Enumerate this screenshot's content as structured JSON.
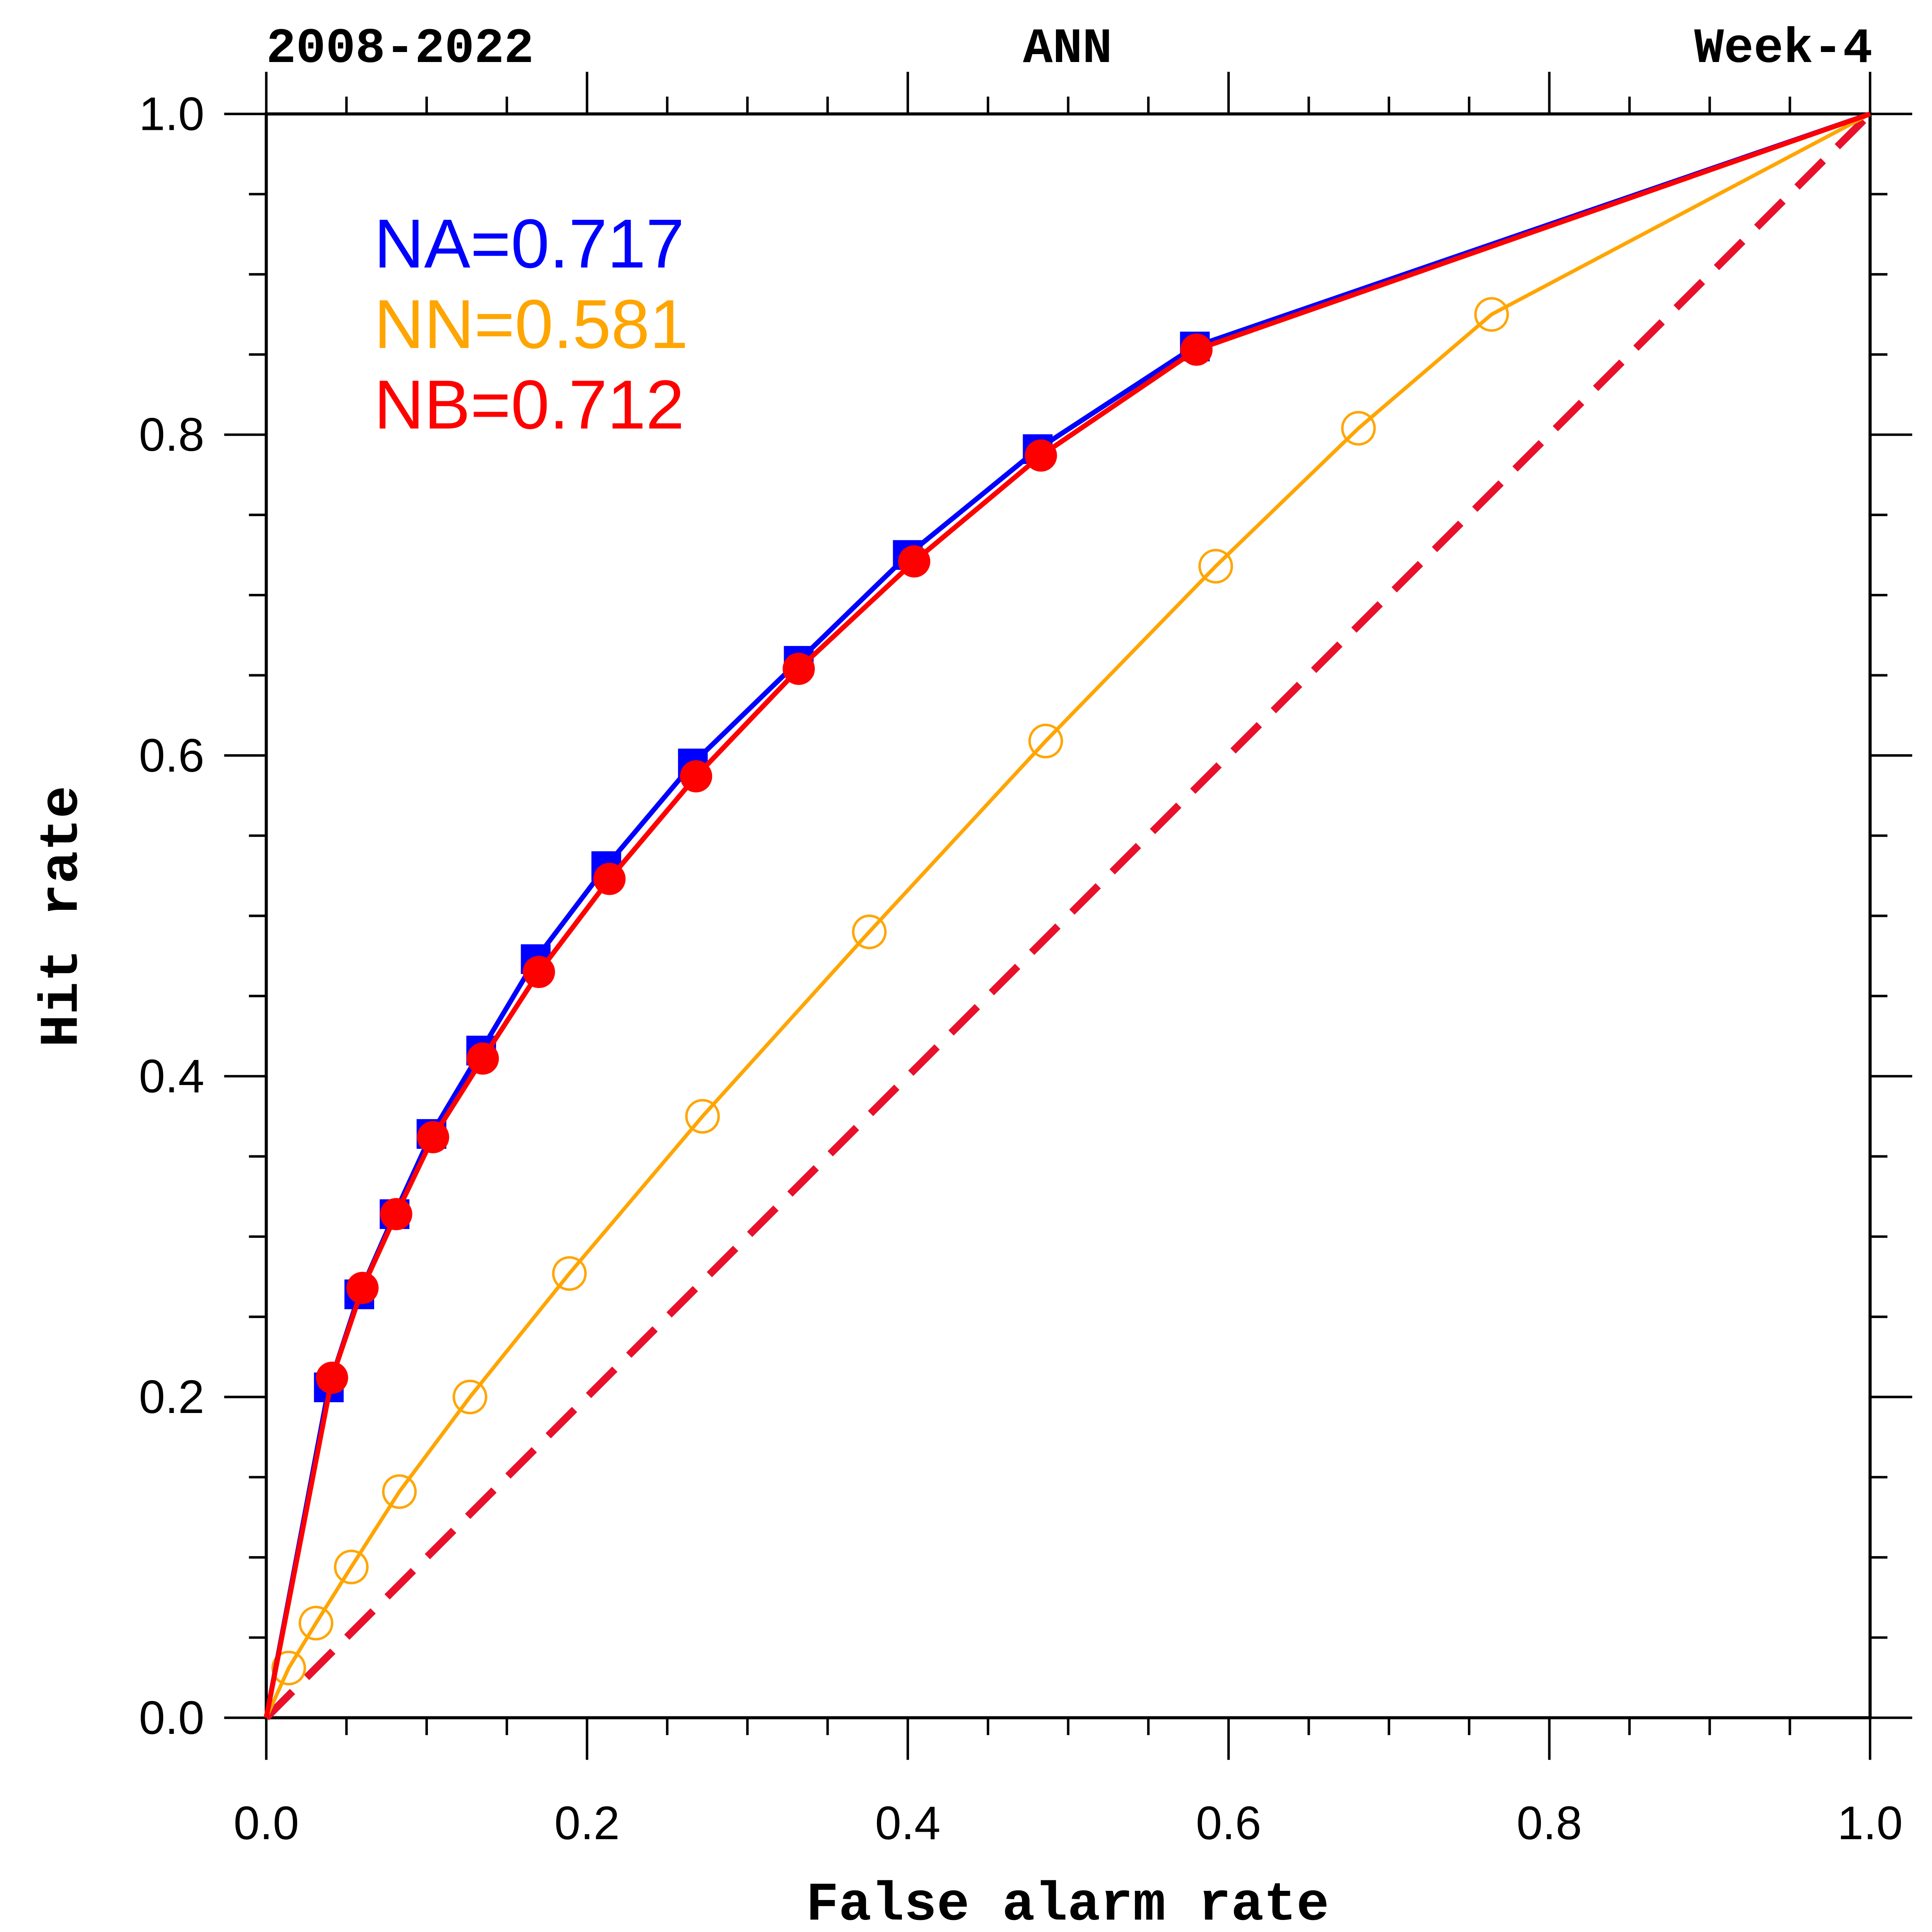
{
  "chart_data": {
    "type": "line",
    "title_left": "2008-2022",
    "title_center": "ANN",
    "title_right": "Week-4",
    "xlabel": "False alarm rate",
    "ylabel": "Hit rate",
    "xlim": [
      0,
      1
    ],
    "ylim": [
      0,
      1
    ],
    "xticks": [
      "0.0",
      "0.2",
      "0.4",
      "0.6",
      "0.8",
      "1.0"
    ],
    "yticks": [
      "0.0",
      "0.2",
      "0.4",
      "0.6",
      "0.8",
      "1.0"
    ],
    "legend_placement": "top-left",
    "series": [
      {
        "name": "NA",
        "label": "NA=0.717",
        "color": "#0000ff",
        "marker": "square",
        "x": [
          0,
          0.039,
          0.058,
          0.08,
          0.103,
          0.134,
          0.168,
          0.212,
          0.266,
          0.332,
          0.4,
          0.481,
          0.579,
          1
        ],
        "y": [
          0,
          0.206,
          0.264,
          0.314,
          0.364,
          0.416,
          0.473,
          0.531,
          0.595,
          0.659,
          0.725,
          0.791,
          0.855,
          1
        ]
      },
      {
        "name": "NN",
        "label": "NN=0.581",
        "color": "#ffa500",
        "marker": "open-circle",
        "x": [
          0,
          0.014,
          0.031,
          0.053,
          0.083,
          0.127,
          0.189,
          0.272,
          0.376,
          0.486,
          0.592,
          0.681,
          0.764,
          1
        ],
        "y": [
          0,
          0.031,
          0.059,
          0.094,
          0.141,
          0.2,
          0.277,
          0.375,
          0.49,
          0.609,
          0.718,
          0.804,
          0.875,
          1
        ]
      },
      {
        "name": "NB",
        "label": "NB=0.712",
        "color": "#ff0000",
        "marker": "filled-circle",
        "x": [
          0,
          0.041,
          0.06,
          0.081,
          0.104,
          0.135,
          0.17,
          0.214,
          0.268,
          0.332,
          0.404,
          0.483,
          0.58,
          1
        ],
        "y": [
          0,
          0.212,
          0.268,
          0.314,
          0.362,
          0.411,
          0.465,
          0.523,
          0.587,
          0.654,
          0.721,
          0.787,
          0.853,
          1
        ]
      }
    ],
    "reference_line": {
      "name": "no-skill diagonal",
      "color": "#e8102a",
      "style": "dashed",
      "x": [
        0,
        1
      ],
      "y": [
        0,
        1
      ]
    }
  }
}
